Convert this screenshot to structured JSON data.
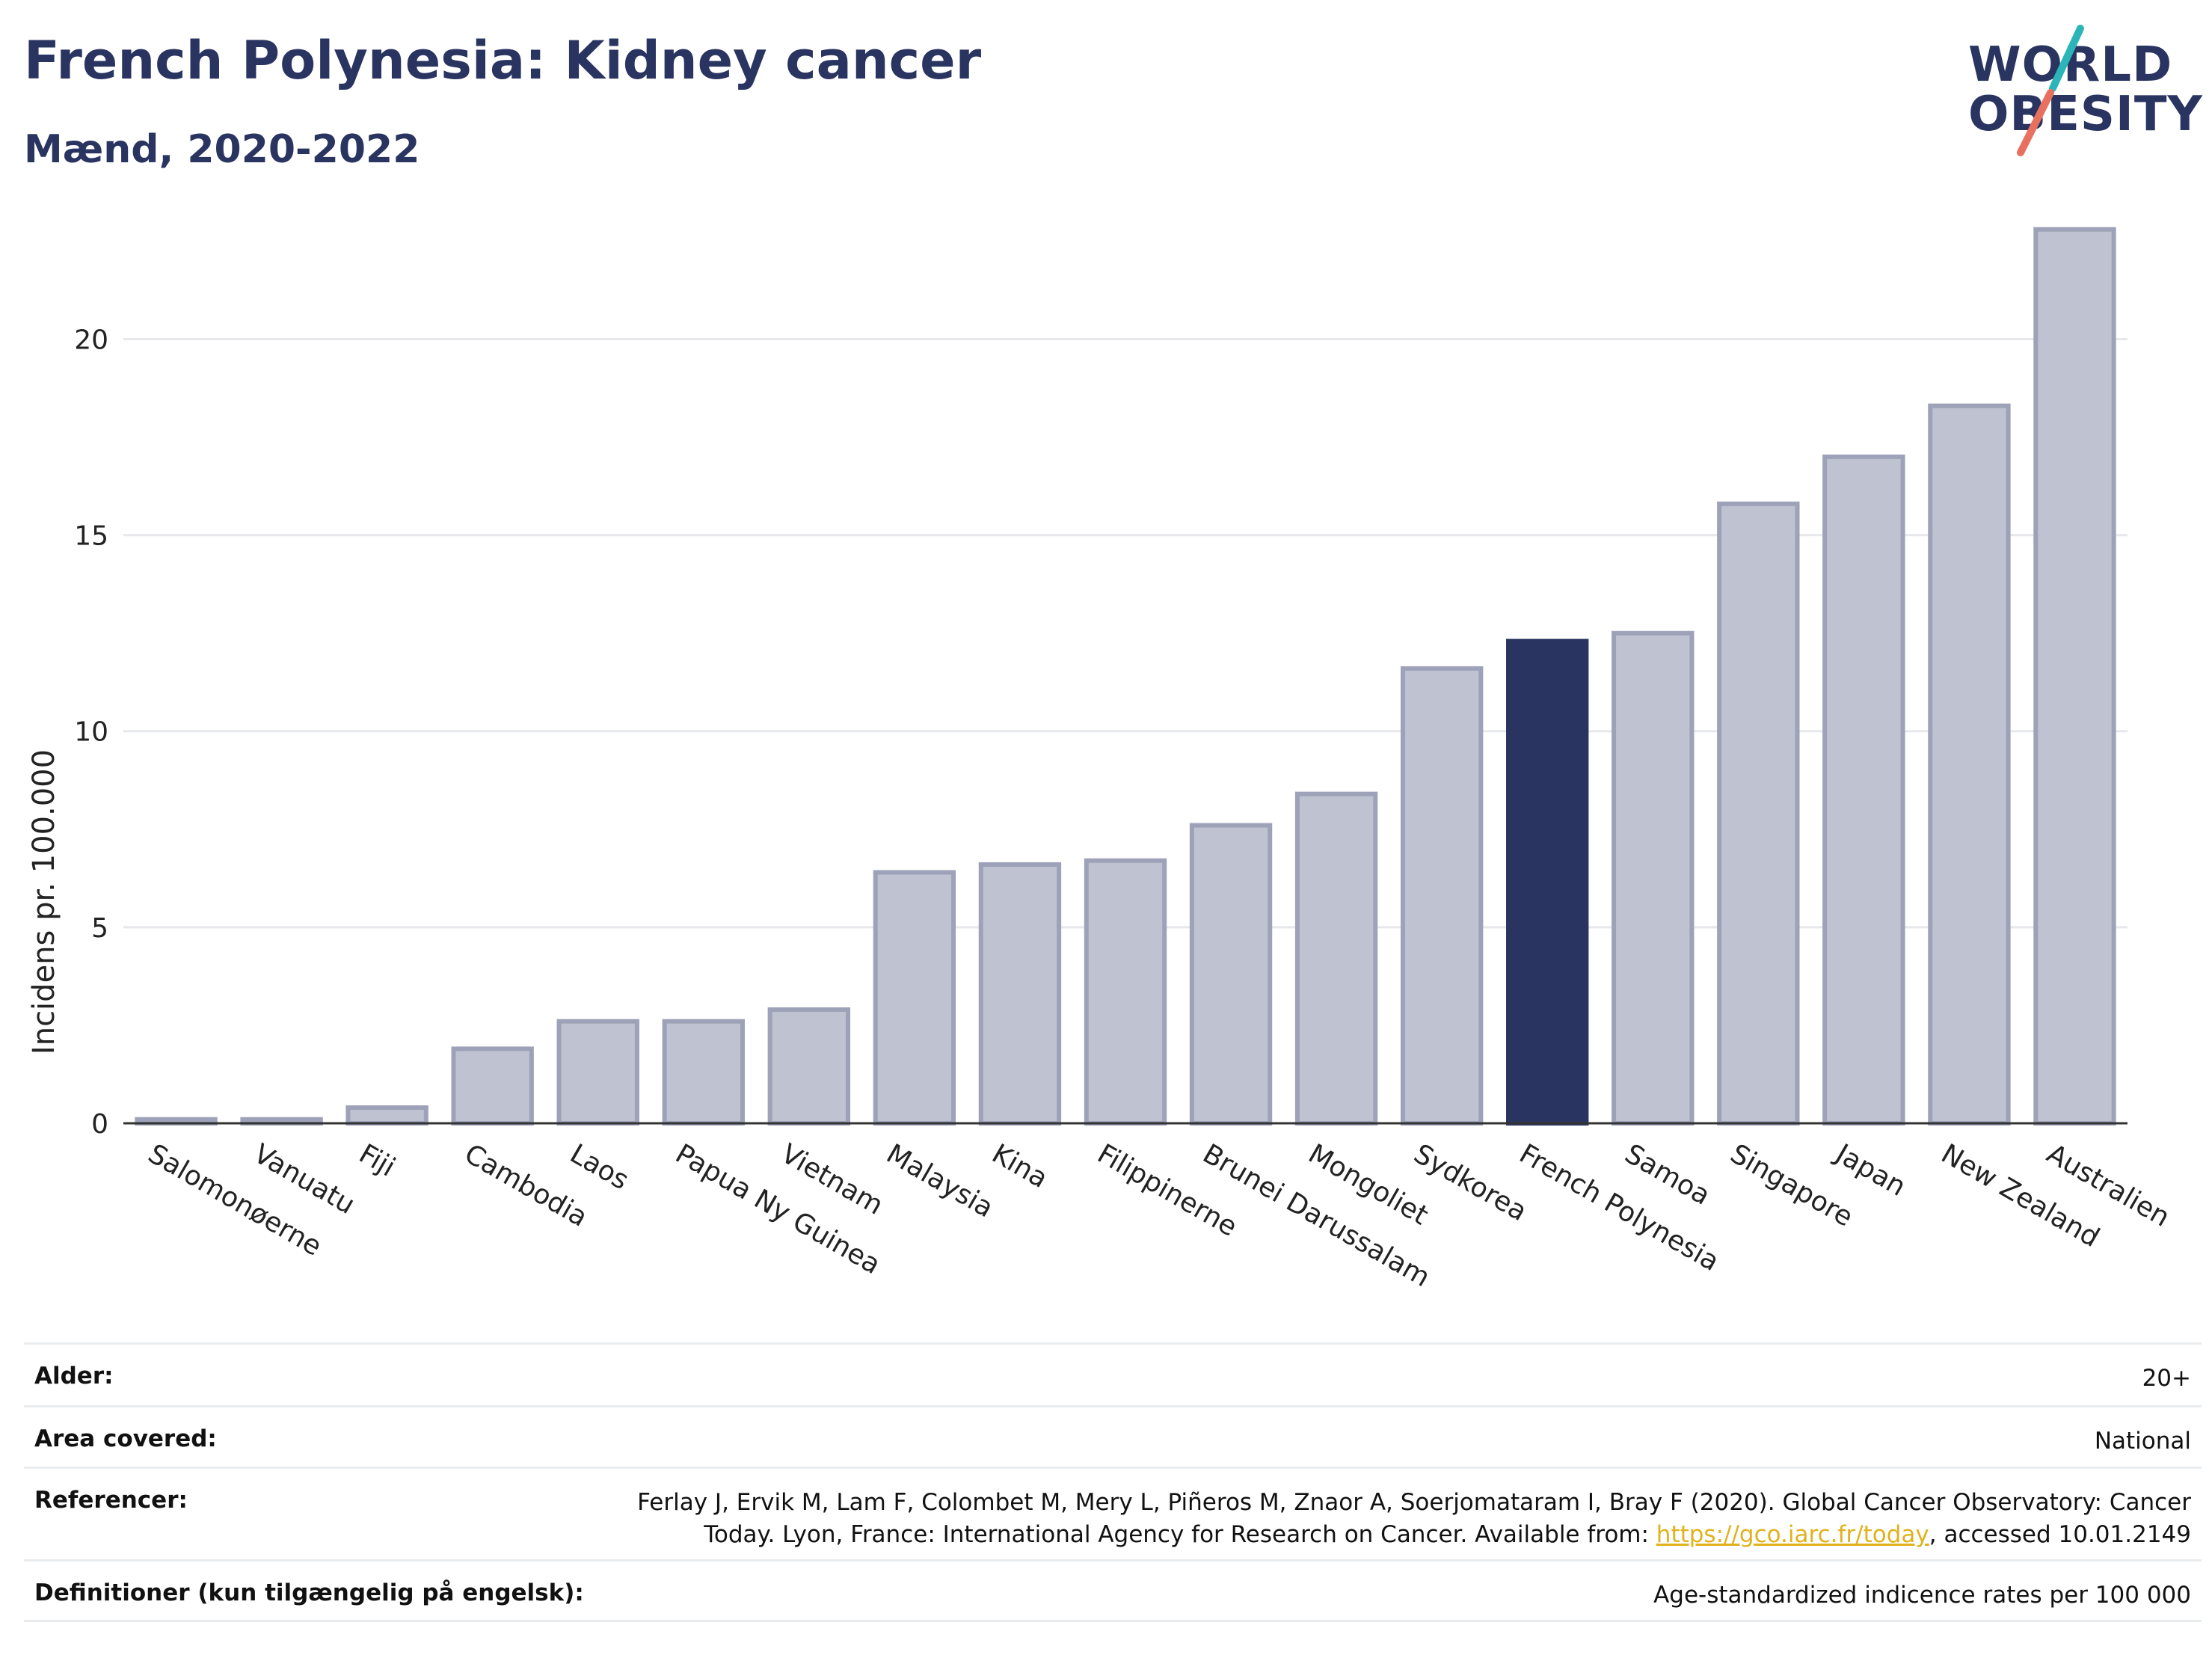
{
  "header": {
    "title": "French Polynesia: Kidney cancer",
    "subtitle": "Mænd, 2020-2022"
  },
  "logo": {
    "line1": "WORLD",
    "line2": "OBESITY"
  },
  "colors": {
    "bar": "#bfc2d0",
    "bar_stroke": "#9da2b8",
    "highlight": "#2a3460",
    "grid": "#e6e8ec",
    "axis": "#333333",
    "logo_teal": "#2bb5b8",
    "logo_coral": "#e8705f"
  },
  "chart_data": {
    "type": "bar",
    "categories": [
      "Salomonøerne",
      "Vanuatu",
      "Fiji",
      "Cambodia",
      "Laos",
      "Papua Ny Guinea",
      "Vietnam",
      "Malaysia",
      "Kina",
      "Filippinerne",
      "Brunei Darussalam",
      "Mongoliet",
      "Sydkorea",
      "French Polynesia",
      "Samoa",
      "Singapore",
      "Japan",
      "New Zealand",
      "Australien"
    ],
    "values": [
      0.1,
      0.1,
      0.4,
      1.9,
      2.6,
      2.6,
      2.9,
      6.4,
      6.6,
      6.7,
      7.6,
      8.4,
      11.6,
      12.3,
      12.5,
      15.8,
      17.0,
      18.3,
      22.8
    ],
    "highlight": "French Polynesia",
    "ylabel": "Incidens pr. 100.000",
    "xlabel": "",
    "ylim": [
      0,
      23.5
    ],
    "yticks": [
      0,
      5,
      10,
      15,
      20
    ],
    "grid": true
  },
  "meta": [
    {
      "key": "Alder:",
      "value": "20+"
    },
    {
      "key": "Area covered:",
      "value": "National"
    },
    {
      "key": "Referencer:",
      "value_line1": "Ferlay J, Ervik M, Lam F, Colombet M, Mery L, Piñeros M, Znaor A, Soerjomataram I, Bray F (2020). Global Cancer Observatory: Cancer",
      "value_line2_pre": "Today. Lyon, France: International Agency for Research on Cancer. Available from: ",
      "value_link": "https://gco.iarc.fr/today",
      "value_line2_post": ", accessed 10.01.2149"
    },
    {
      "key": "Definitioner (kun tilgængelig på engelsk):",
      "value": "Age-standardized indicence rates per 100 000"
    }
  ]
}
